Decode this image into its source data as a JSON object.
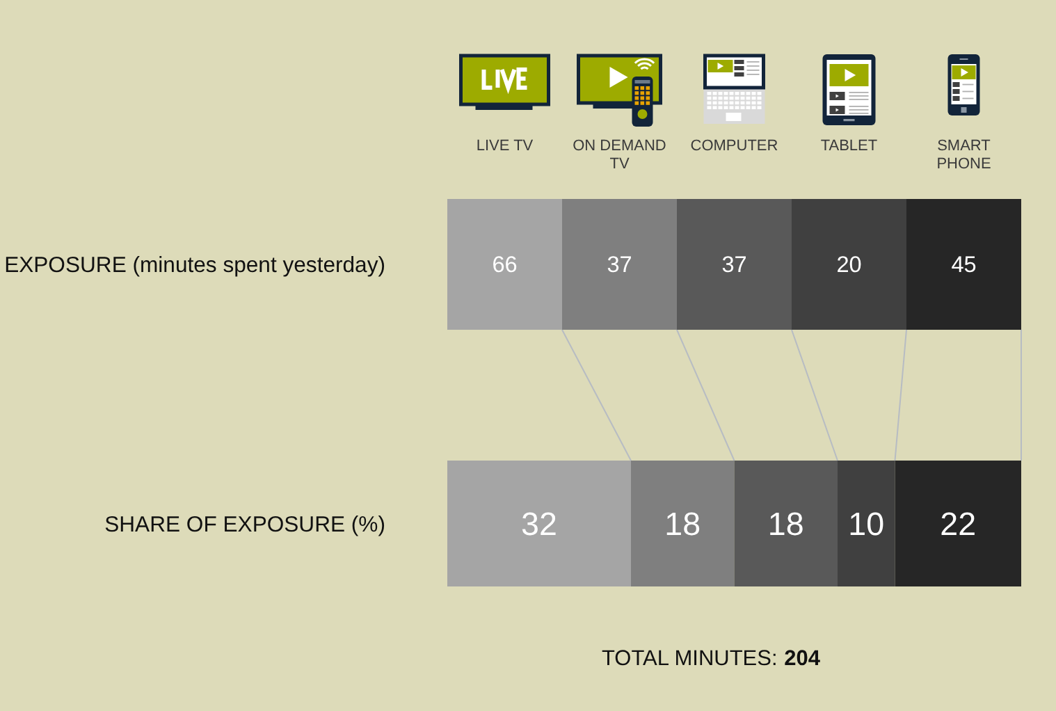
{
  "chart_data": [
    {
      "type": "other",
      "categories": [
        "LIVE TV",
        "ON DEMAND TV",
        "COMPUTER",
        "TABLET",
        "SMART PHONE"
      ],
      "y_categories": [
        "EXPOSURE (minutes spent yesterday)"
      ],
      "values": [
        66,
        37,
        37,
        20,
        45
      ],
      "colors": [
        "#a5a5a5",
        "#7f7f7f",
        "#595959",
        "#404040",
        "#262626"
      ],
      "data_labels": true
    },
    {
      "type": "bar",
      "orientation": "horizontal",
      "stacked": true,
      "categories": [
        "SHARE OF EXPOSURE (%)"
      ],
      "series": [
        {
          "color": "#a5a5a5",
          "values": [
            32
          ]
        },
        {
          "color": "#7f7f7f",
          "values": [
            18
          ]
        },
        {
          "color": "#595959",
          "values": [
            18
          ]
        },
        {
          "color": "#404040",
          "values": [
            10
          ]
        },
        {
          "color": "#262626",
          "values": [
            22
          ]
        }
      ],
      "xlim": [
        0,
        100
      ],
      "tick_labels": "y",
      "data_labels": true,
      "annotations": [
        "TOTAL MINUTES:",
        "204"
      ]
    }
  ]
}
